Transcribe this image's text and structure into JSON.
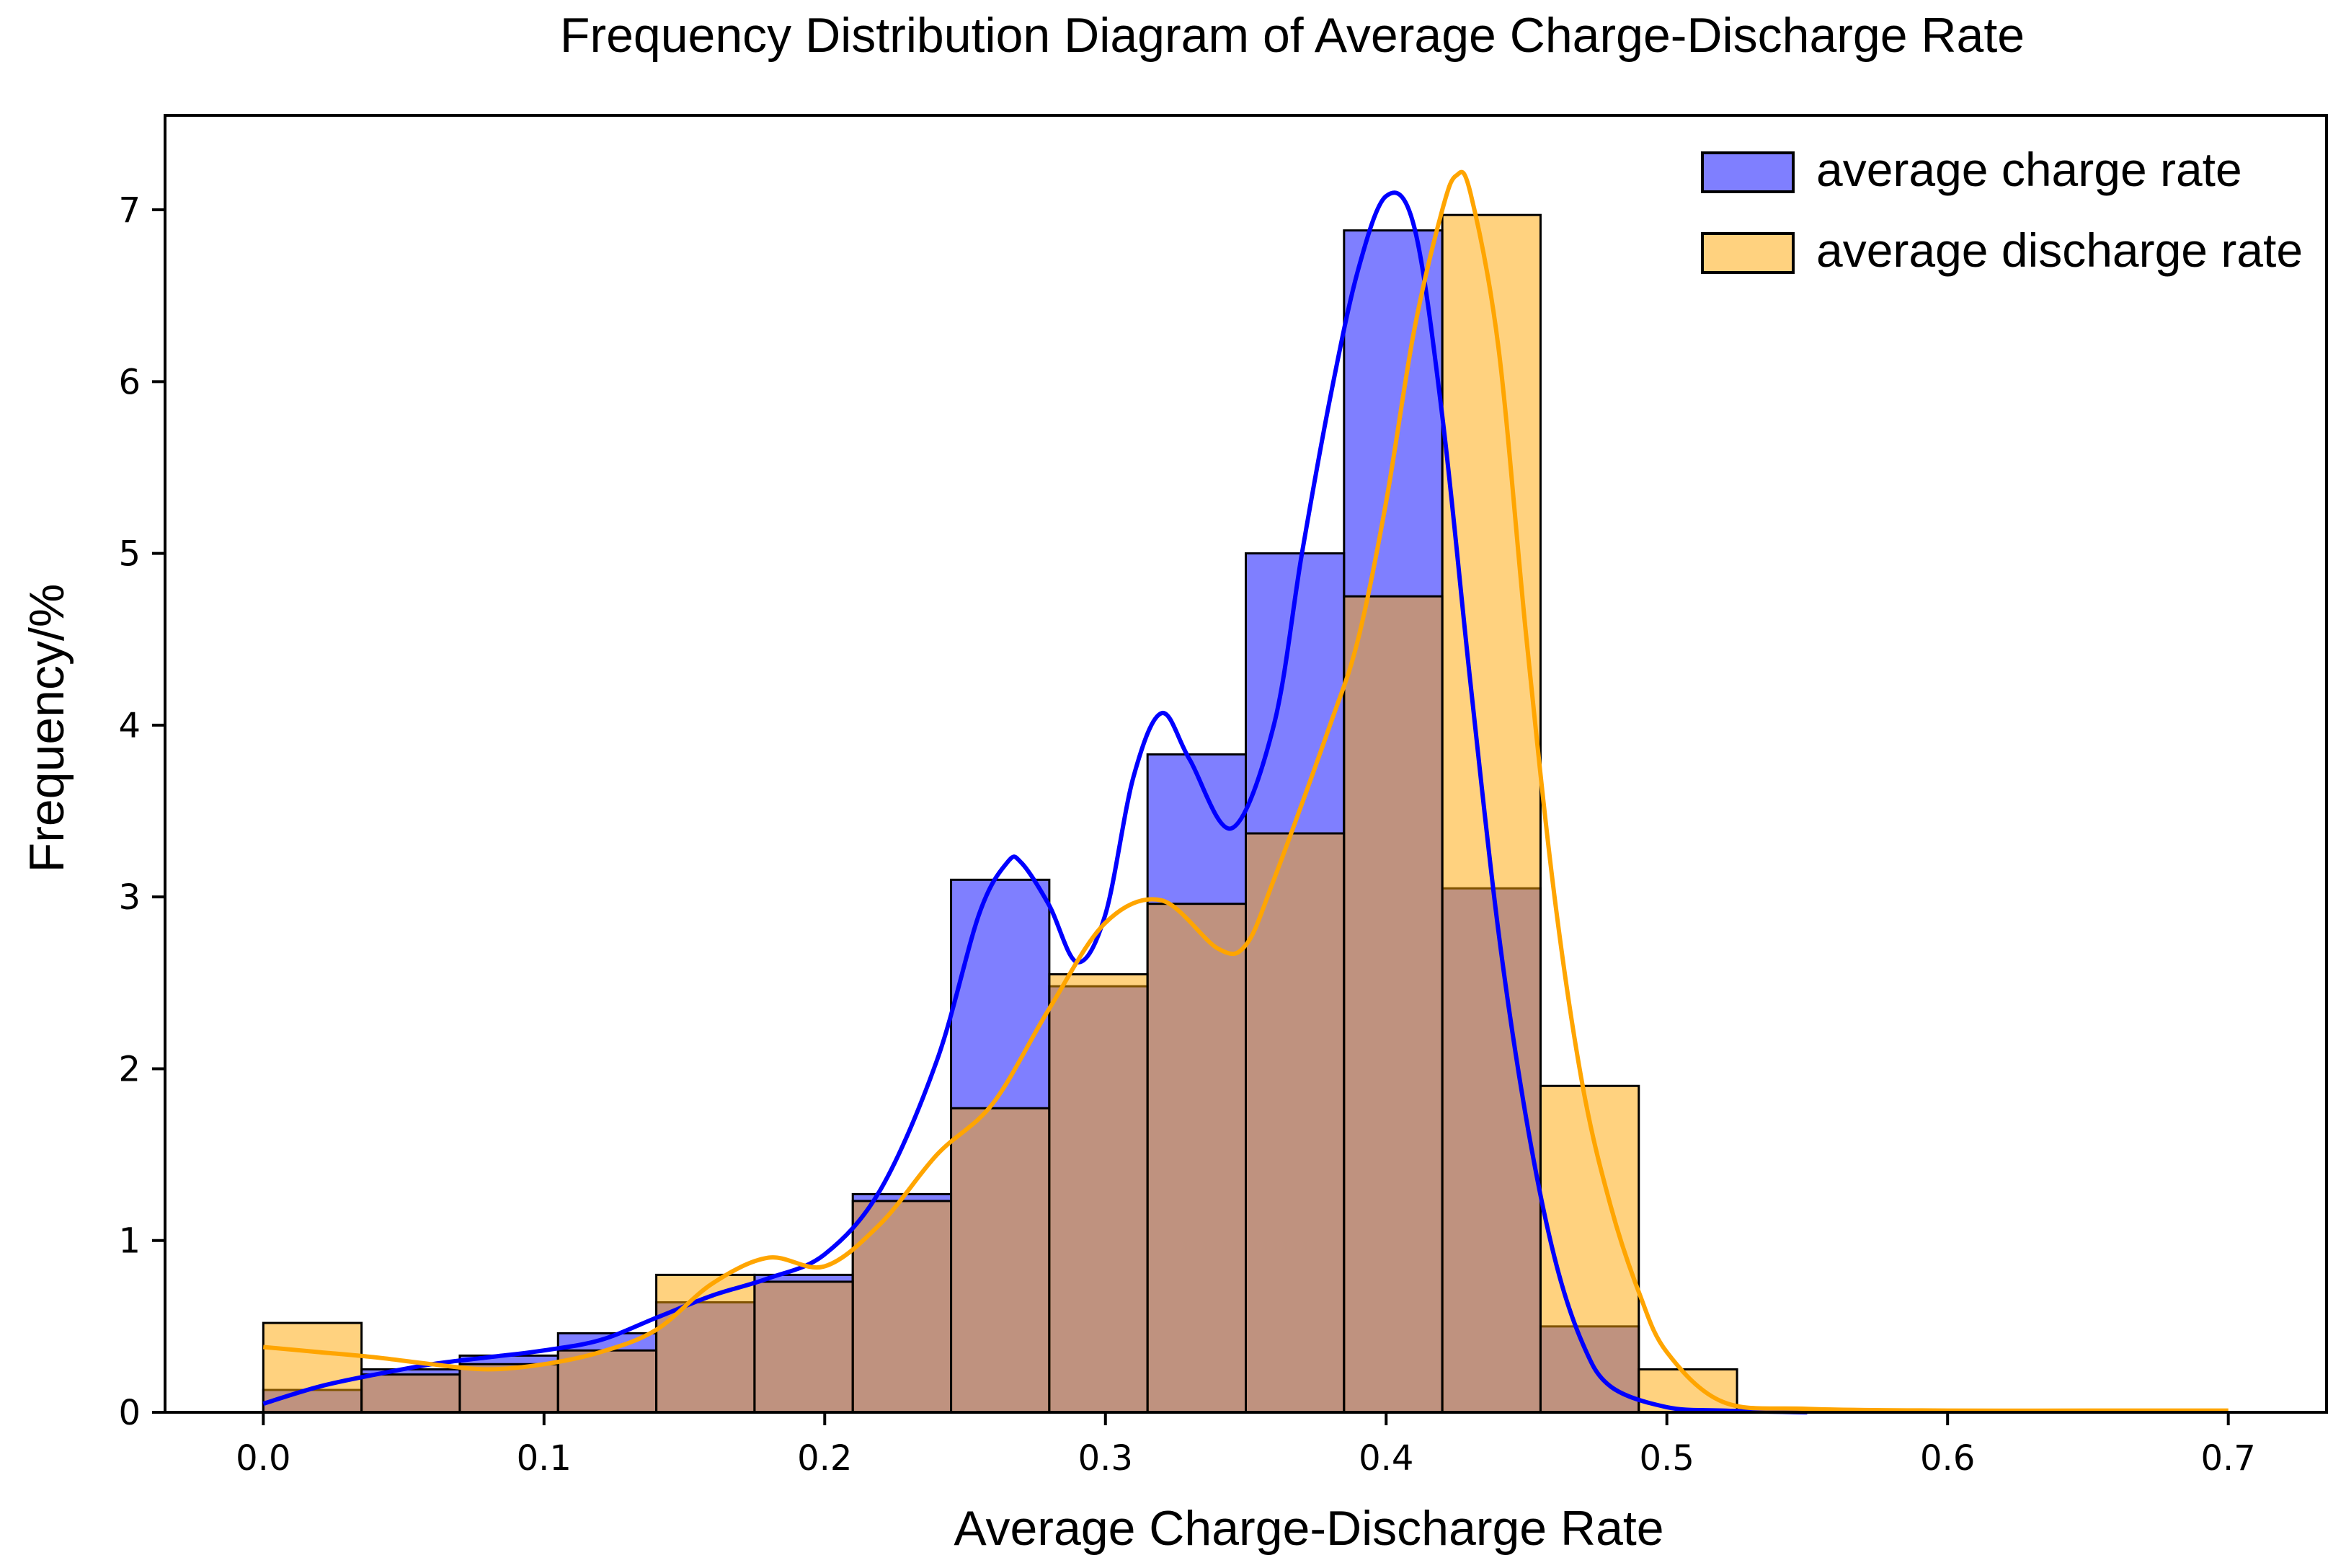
{
  "chart_data": {
    "type": "histogram",
    "title": "Frequency Distribution Diagram of Average Charge-Discharge Rate",
    "xlabel": "Average Charge-Discharge Rate",
    "ylabel": "Frequency/%",
    "xlim": [
      -0.035,
      0.735
    ],
    "ylim": [
      0,
      7.55
    ],
    "xticks": [
      0.0,
      0.1,
      0.2,
      0.3,
      0.4,
      0.5,
      0.6,
      0.7
    ],
    "xtick_labels": [
      "0.0",
      "0.1",
      "0.2",
      "0.3",
      "0.4",
      "0.5",
      "0.6",
      "0.7"
    ],
    "yticks": [
      0,
      1,
      2,
      3,
      4,
      5,
      6,
      7
    ],
    "ytick_labels": [
      "0",
      "1",
      "2",
      "3",
      "4",
      "5",
      "6",
      "7"
    ],
    "bin_edges": [
      0.0,
      0.035,
      0.07,
      0.105,
      0.14,
      0.175,
      0.21,
      0.245,
      0.28,
      0.315,
      0.35,
      0.385,
      0.42,
      0.455,
      0.49,
      0.525
    ],
    "legend_position": "top-right",
    "series": [
      {
        "name": "average charge rate",
        "color": "#0000ff",
        "bar_fill": "rgba(0,0,255,0.5)",
        "values": [
          0.13,
          0.25,
          0.33,
          0.46,
          0.64,
          0.8,
          1.27,
          3.1,
          2.48,
          3.83,
          5.0,
          6.88,
          3.05,
          0.5,
          0.0
        ],
        "kde": {
          "x": [
            0.0,
            0.02,
            0.04,
            0.06,
            0.08,
            0.1,
            0.12,
            0.14,
            0.16,
            0.18,
            0.2,
            0.22,
            0.24,
            0.255,
            0.265,
            0.27,
            0.28,
            0.29,
            0.3,
            0.31,
            0.32,
            0.33,
            0.345,
            0.36,
            0.37,
            0.38,
            0.39,
            0.4,
            0.41,
            0.42,
            0.43,
            0.44,
            0.45,
            0.46,
            0.47,
            0.48,
            0.5,
            0.52,
            0.55
          ],
          "y": [
            0.05,
            0.15,
            0.22,
            0.28,
            0.32,
            0.36,
            0.42,
            0.55,
            0.68,
            0.78,
            0.92,
            1.3,
            2.05,
            2.9,
            3.2,
            3.2,
            2.95,
            2.62,
            2.9,
            3.7,
            4.07,
            3.8,
            3.4,
            4.0,
            5.0,
            5.9,
            6.65,
            7.08,
            6.9,
            5.8,
            4.25,
            2.8,
            1.7,
            0.9,
            0.4,
            0.15,
            0.03,
            0.01,
            0.0
          ]
        }
      },
      {
        "name": "average discharge rate",
        "color": "#ffa500",
        "bar_fill": "rgba(255,165,0,0.5)",
        "values": [
          0.52,
          0.22,
          0.28,
          0.36,
          0.8,
          0.76,
          1.23,
          1.77,
          2.55,
          2.96,
          3.37,
          4.75,
          6.97,
          1.9,
          0.25
        ],
        "kde": {
          "x": [
            0.0,
            0.02,
            0.04,
            0.06,
            0.08,
            0.1,
            0.12,
            0.14,
            0.16,
            0.18,
            0.2,
            0.22,
            0.24,
            0.26,
            0.28,
            0.3,
            0.32,
            0.34,
            0.35,
            0.36,
            0.38,
            0.39,
            0.4,
            0.41,
            0.42,
            0.425,
            0.43,
            0.44,
            0.45,
            0.46,
            0.47,
            0.48,
            0.49,
            0.5,
            0.52,
            0.55,
            0.6,
            0.65,
            0.7
          ],
          "y": [
            0.38,
            0.35,
            0.32,
            0.28,
            0.25,
            0.28,
            0.35,
            0.48,
            0.75,
            0.9,
            0.85,
            1.1,
            1.5,
            1.8,
            2.35,
            2.85,
            2.98,
            2.7,
            2.72,
            3.1,
            4.0,
            4.5,
            5.3,
            6.3,
            7.0,
            7.2,
            7.1,
            6.2,
            4.5,
            3.0,
            1.9,
            1.2,
            0.7,
            0.35,
            0.06,
            0.02,
            0.01,
            0.01,
            0.01
          ]
        }
      }
    ]
  }
}
